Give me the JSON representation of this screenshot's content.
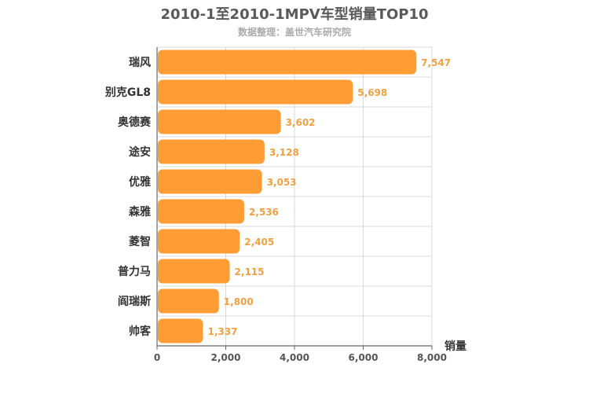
{
  "chart_data": {
    "type": "bar",
    "orientation": "horizontal",
    "title": "2010-1至2010-1MPV车型销量TOP10",
    "subtitle": "数据整理：盖世汽车研究院",
    "categories": [
      "瑞风",
      "别克GL8",
      "奥德赛",
      "途安",
      "优雅",
      "森雅",
      "菱智",
      "普力马",
      "阎瑞斯",
      "帅客"
    ],
    "values": [
      7547,
      5698,
      3602,
      3128,
      3053,
      2536,
      2405,
      2115,
      1800,
      1337
    ],
    "value_labels": [
      "7,547",
      "5,698",
      "3,602",
      "3,128",
      "3,053",
      "2,536",
      "2,405",
      "2,115",
      "1,800",
      "1,337"
    ],
    "xlabel": "销量",
    "ylabel": "",
    "xlim": [
      0,
      8000
    ],
    "ticks": [
      0,
      2000,
      4000,
      6000,
      8000
    ],
    "tick_labels": [
      "0",
      "2,000",
      "4,000",
      "6,000",
      "8,000"
    ],
    "grid": true,
    "bar_color": "#ff9c33"
  }
}
